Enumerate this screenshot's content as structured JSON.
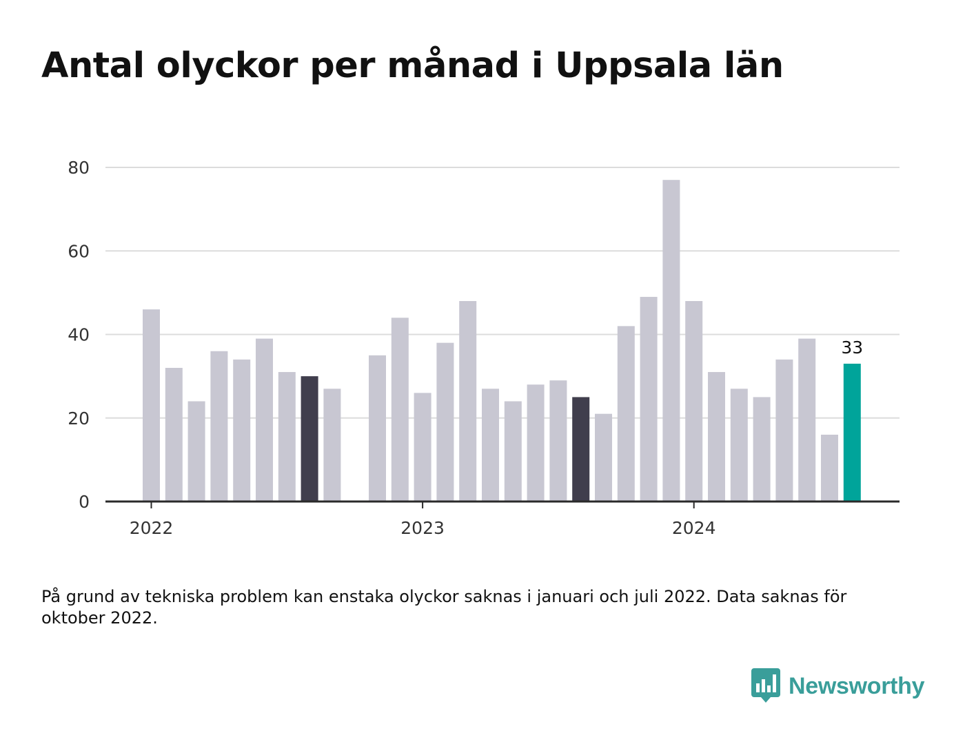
{
  "title": "Antal olyckor per månad i Uppsala län",
  "footnote": "På grund av tekniska problem kan enstaka olyckor saknas i januari och juli 2022. Data saknas för oktober 2022.",
  "brand": {
    "name": "Newsworthy",
    "icon": "bar-chart-speech-bubble-icon",
    "color": "#3a9e9a"
  },
  "chart_data": {
    "type": "bar",
    "title": "Antal olyckor per månad i Uppsala län",
    "xlabel": "",
    "ylabel": "",
    "ylim": [
      0,
      80
    ],
    "yticks": [
      0,
      20,
      40,
      60,
      80
    ],
    "xtick_labels": [
      "2022",
      "2023",
      "2024"
    ],
    "grid": true,
    "colors": {
      "default": "#c8c7d2",
      "highlight_dark": "#403e4d",
      "latest": "#00a49a"
    },
    "x": [
      "2022-01",
      "2022-02",
      "2022-03",
      "2022-04",
      "2022-05",
      "2022-06",
      "2022-07",
      "2022-08",
      "2022-09",
      "2022-10",
      "2022-11",
      "2022-12",
      "2023-01",
      "2023-02",
      "2023-03",
      "2023-04",
      "2023-05",
      "2023-06",
      "2023-07",
      "2023-08",
      "2023-09",
      "2023-10",
      "2023-11",
      "2023-12",
      "2024-01",
      "2024-02",
      "2024-03",
      "2024-04",
      "2024-05",
      "2024-06",
      "2024-07",
      "2024-08"
    ],
    "values": [
      46,
      32,
      24,
      36,
      34,
      39,
      31,
      30,
      27,
      null,
      35,
      44,
      26,
      38,
      48,
      27,
      24,
      28,
      29,
      25,
      21,
      42,
      49,
      77,
      48,
      31,
      27,
      25,
      34,
      39,
      16,
      33
    ],
    "highlight": {
      "2022-08": "highlight_dark",
      "2023-08": "highlight_dark",
      "2024-08": "latest"
    },
    "data_labels": [
      {
        "x": "2024-08",
        "text": "33"
      }
    ]
  }
}
